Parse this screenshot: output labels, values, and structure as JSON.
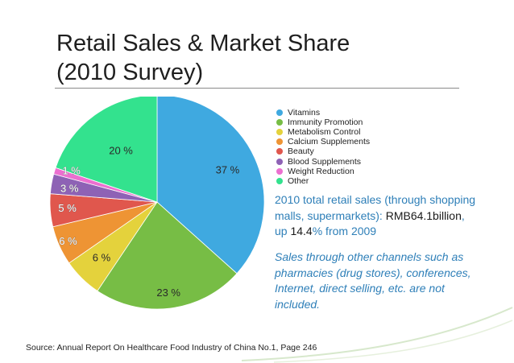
{
  "title": {
    "line1": "Retail Sales & Market Share",
    "line2": "(2010 Survey)"
  },
  "chart_data": {
    "type": "pie",
    "title": "Retail Sales & Market Share (2010 Survey)",
    "slices": [
      {
        "name": "Vitamins",
        "value": 37,
        "label": "37 %",
        "color": "#3fa9e0"
      },
      {
        "name": "Immunity Promotion",
        "value": 23,
        "label": "23 %",
        "color": "#77bd45"
      },
      {
        "name": "Metabolism Control",
        "value": 6,
        "label": "6 %",
        "color": "#e4d23c"
      },
      {
        "name": "Calcium Supplements",
        "value": 6,
        "label": "6 %",
        "color": "#ee9434"
      },
      {
        "name": "Beauty",
        "value": 5,
        "label": "5 %",
        "color": "#e0574d"
      },
      {
        "name": "Blood Supplements",
        "value": 3,
        "label": "3 %",
        "color": "#8e62b5"
      },
      {
        "name": "Weight Reduction",
        "value": 1,
        "label": "1 %",
        "color": "#ec6fd0"
      },
      {
        "name": "Other",
        "value": 20,
        "label": "20 %",
        "color": "#33e28e"
      }
    ],
    "legend_position": "right"
  },
  "notes": {
    "sales_prefix": "2010 total retail sales (through shopping malls, supermarkets): ",
    "sales_amount": "RMB64.1billion",
    "sales_mid": ", up ",
    "sales_growth": "14.4",
    "sales_suffix": "% from 2009",
    "other_channels": "Sales through other channels such as pharmacies (drug stores), conferences, Internet, direct selling, etc. are not included."
  },
  "source": "Source: Annual Report On Healthcare Food Industry of China  No.1, Page 246"
}
